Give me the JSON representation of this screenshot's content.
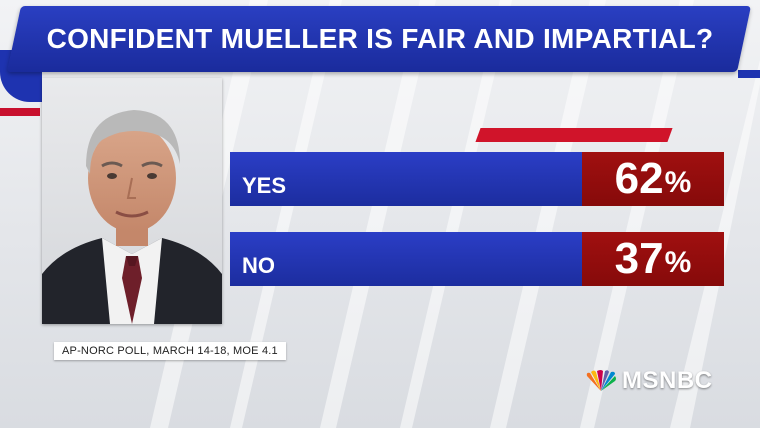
{
  "title": "CONFIDENT MUELLER IS FAIR AND IMPARTIAL?",
  "source": "AP-NORC POLL, MARCH 14-18, MOE 4.1",
  "network": "MSNBC",
  "icons": {
    "logo": "peacock-icon"
  },
  "colors": {
    "banner": "#1a2b9c",
    "bar_blue": "#2536b8",
    "value_red": "#950d0d",
    "accent_red": "#d0142a"
  },
  "chart_data": {
    "type": "bar",
    "orientation": "horizontal",
    "unit": "%",
    "categories": [
      "YES",
      "NO"
    ],
    "values": [
      62,
      37
    ],
    "title": "CONFIDENT MUELLER IS FAIR AND IMPARTIAL?",
    "xlabel": "",
    "ylabel": "",
    "grid": false,
    "legend": "none"
  }
}
